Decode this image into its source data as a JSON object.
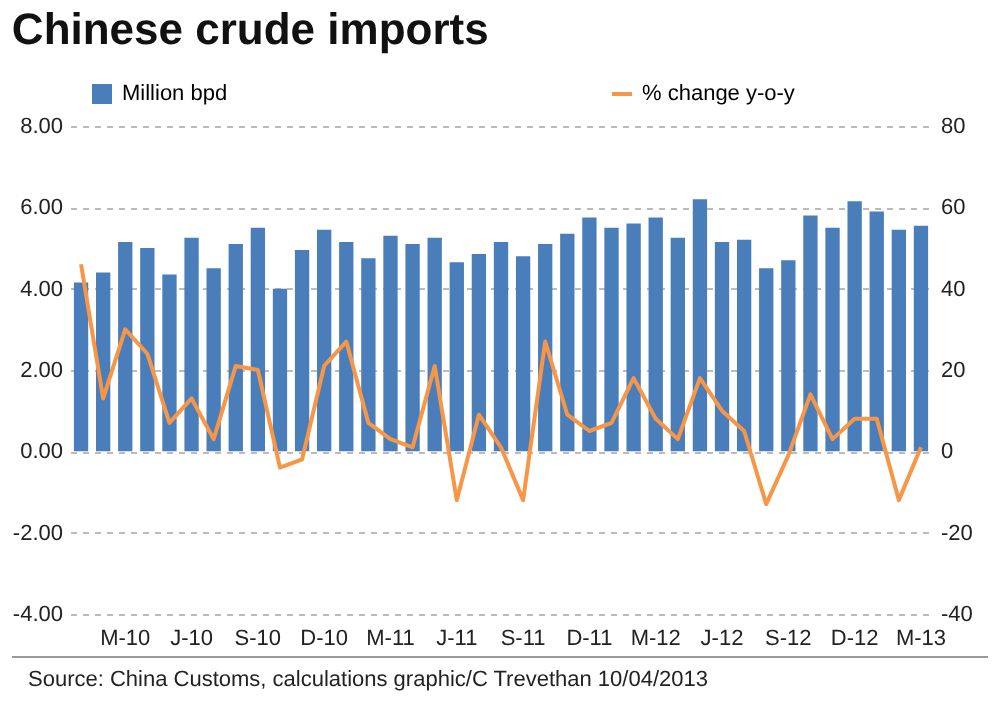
{
  "chart_data": {
    "type": "bar",
    "title": "Chinese crude imports",
    "categories": [
      null,
      null,
      "M-10",
      null,
      null,
      "J-10",
      null,
      null,
      "S-10",
      null,
      null,
      "D-10",
      null,
      null,
      "M-11",
      null,
      null,
      "J-11",
      null,
      null,
      "S-11",
      null,
      null,
      "D-11",
      null,
      null,
      "M-12",
      null,
      null,
      "J-12",
      null,
      null,
      "S-12",
      null,
      null,
      "D-12",
      null,
      null,
      "M-13"
    ],
    "series": [
      {
        "name": "Million bpd",
        "color": "#4a7ebb",
        "values": [
          4.15,
          4.4,
          5.15,
          5.0,
          4.35,
          5.25,
          4.5,
          5.1,
          5.5,
          4.0,
          4.95,
          5.45,
          5.15,
          4.75,
          5.3,
          5.1,
          5.25,
          4.65,
          4.85,
          5.15,
          4.8,
          5.1,
          5.35,
          5.75,
          5.5,
          5.6,
          5.75,
          5.25,
          6.2,
          5.15,
          5.2,
          4.5,
          4.7,
          5.8,
          5.5,
          6.15,
          5.9,
          5.45,
          5.55
        ]
      },
      {
        "name": "% change y-o-y",
        "type": "line",
        "axis": "y2",
        "color": "#f79646",
        "values": [
          46,
          13,
          30,
          24,
          7,
          13,
          3,
          21,
          20,
          -4,
          -2,
          21,
          27,
          7,
          3,
          1,
          21,
          -12,
          9,
          1,
          -12,
          27,
          9,
          5,
          7,
          18,
          8,
          3,
          18,
          10,
          5,
          -13,
          -1,
          14,
          3,
          8,
          8,
          -12,
          1
        ]
      }
    ],
    "ylim": [
      -4,
      8
    ],
    "yticks": [
      {
        "value": -4,
        "label": "-4.00"
      },
      {
        "value": -2,
        "label": "-2.00"
      },
      {
        "value": 0,
        "label": "0.00"
      },
      {
        "value": 2,
        "label": "2.00"
      },
      {
        "value": 4,
        "label": "4.00"
      },
      {
        "value": 6,
        "label": "6.00"
      },
      {
        "value": 8,
        "label": "8.00"
      }
    ],
    "y2lim": [
      -40,
      80
    ],
    "y2ticks": [
      -40,
      -20,
      0,
      20,
      40,
      60,
      80
    ],
    "grid": "y",
    "legend": "top",
    "annotations": [
      "Source: China Customs, calculations graphic/C Trevethan 10/04/2013"
    ]
  }
}
